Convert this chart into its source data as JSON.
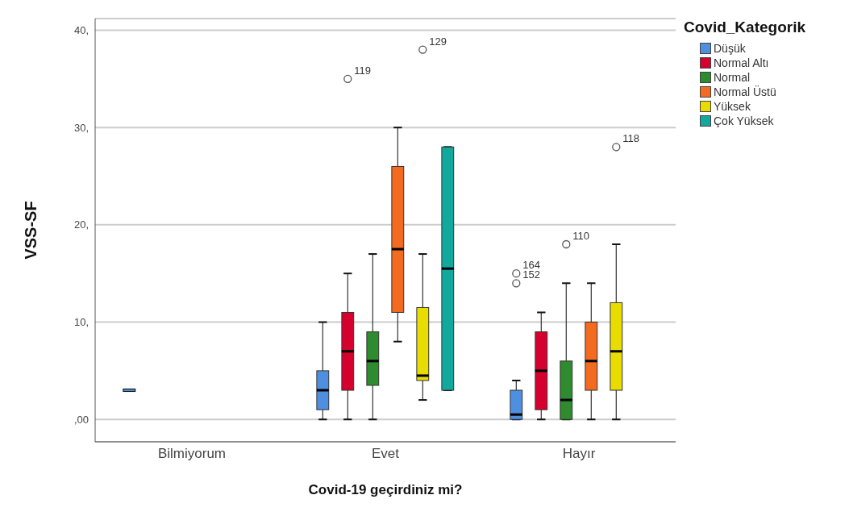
{
  "chart_data": {
    "type": "box",
    "xlabel": "Covid-19 geçirdiniz mi?",
    "ylabel": "VSS-SF",
    "legend_title": "Covid_Kategorik",
    "categories": [
      "Bilmiyorum",
      "Evet",
      "Hayır"
    ],
    "series": [
      {
        "name": "Düşük",
        "color": "#4f8fe0",
        "boxes": [
          {
            "low": 3,
            "q1": 3,
            "median": 3,
            "q3": 3,
            "high": 3
          },
          {
            "low": 0,
            "q1": 1,
            "median": 3,
            "q3": 5,
            "high": 10
          },
          {
            "low": 0,
            "q1": 0,
            "median": 0.5,
            "q3": 3,
            "high": 4,
            "outliers": [
              15,
              14
            ]
          }
        ]
      },
      {
        "name": "Normal Altı",
        "color": "#d6002e",
        "boxes": [
          null,
          {
            "low": 0,
            "q1": 3,
            "median": 7,
            "q3": 11,
            "high": 15,
            "outliers": [
              35
            ]
          },
          {
            "low": 0,
            "q1": 1,
            "median": 5,
            "q3": 9,
            "high": 11
          }
        ]
      },
      {
        "name": "Normal",
        "color": "#2e8b2e",
        "boxes": [
          null,
          {
            "low": 0,
            "q1": 3.5,
            "median": 6,
            "q3": 9,
            "high": 17
          },
          {
            "low": 0,
            "q1": 0,
            "median": 2,
            "q3": 6,
            "high": 14,
            "outliers": [
              18
            ]
          }
        ]
      },
      {
        "name": "Normal Üstü",
        "color": "#f26b21",
        "boxes": [
          null,
          {
            "low": 8,
            "q1": 11,
            "median": 17.5,
            "q3": 26,
            "high": 30
          },
          {
            "low": 0,
            "q1": 3,
            "median": 6,
            "q3": 10,
            "high": 14
          }
        ]
      },
      {
        "name": "Yüksek",
        "color": "#e8dc00",
        "boxes": [
          null,
          {
            "low": 2,
            "q1": 4,
            "median": 4.5,
            "q3": 11.5,
            "high": 17,
            "outliers": [
              38
            ]
          },
          {
            "low": 0,
            "q1": 3,
            "median": 7,
            "q3": 12,
            "high": 18,
            "outliers": [
              28
            ]
          }
        ]
      },
      {
        "name": "Çok Yüksek",
        "color": "#13a89e",
        "boxes": [
          null,
          {
            "low": 3,
            "q1": 3,
            "median": 15.5,
            "q3": 28,
            "high": 28
          },
          null
        ]
      }
    ],
    "annotations": [
      "164",
      "152",
      "119",
      "110",
      "129",
      "118"
    ],
    "ylim": [
      -2.3,
      41.2
    ],
    "yticks": [
      {
        "value": 0,
        "label": ",00"
      },
      {
        "value": 10,
        "label": "10,"
      },
      {
        "value": 20,
        "label": "20,"
      },
      {
        "value": 30,
        "label": "30,"
      },
      {
        "value": 40,
        "label": "40,"
      }
    ],
    "grid": "y",
    "legend": "right"
  }
}
